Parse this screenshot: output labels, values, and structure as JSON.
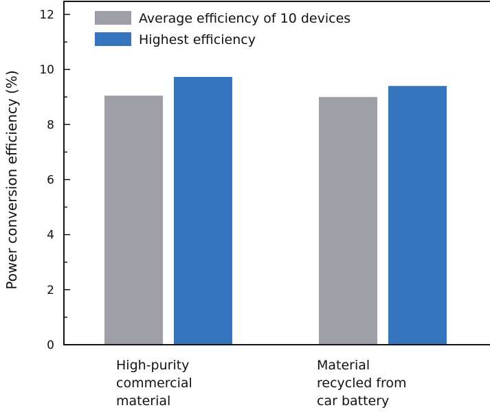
{
  "chart_data": {
    "type": "bar",
    "title": "",
    "xlabel": "",
    "ylabel": "Power conversion efficiency (%)",
    "ylim": [
      0,
      12
    ],
    "yticks": [
      0,
      2,
      4,
      6,
      8,
      10,
      12
    ],
    "yminor_step": 1,
    "grid": false,
    "legend_position": "top-left",
    "categories": [
      [
        "High-purity",
        "commercial",
        "material"
      ],
      [
        "Material",
        "recycled from",
        "car battery"
      ]
    ],
    "series": [
      {
        "name": "Average efficiency of 10 devices",
        "color": "#9e9ea6",
        "values": [
          9.05,
          9.0
        ]
      },
      {
        "name": "Highest efficiency",
        "color": "#3574bd",
        "values": [
          9.73,
          9.4
        ]
      }
    ]
  }
}
